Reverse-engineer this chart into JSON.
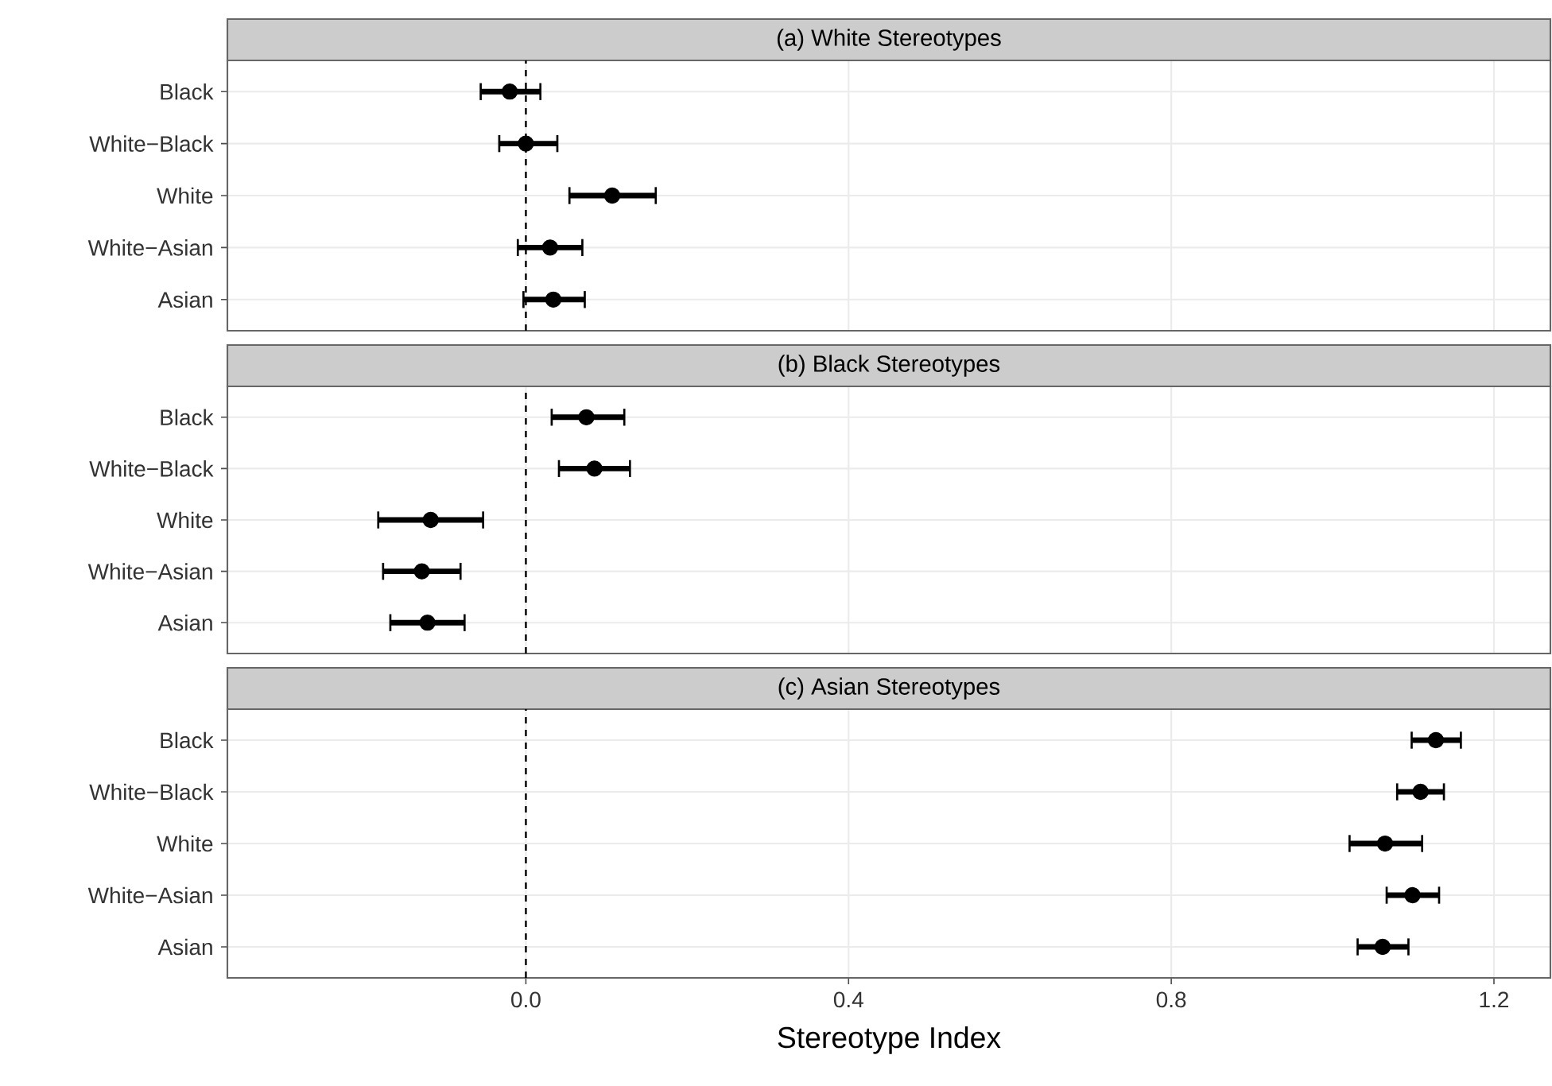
{
  "chart_data": [
    {
      "type": "scatter",
      "title": "(a) White Stereotypes",
      "orientation": "horizontal",
      "categories": [
        "Black",
        "White−Black",
        "White",
        "White−Asian",
        "Asian"
      ],
      "values": [
        -0.02,
        0.0,
        0.107,
        0.03,
        0.034
      ],
      "errors": [
        [
          -0.056,
          0.018
        ],
        [
          -0.033,
          0.039
        ],
        [
          0.054,
          0.161
        ],
        [
          -0.01,
          0.07
        ],
        [
          -0.003,
          0.073
        ]
      ],
      "color": "#000000",
      "xlim": [
        -0.37,
        1.27
      ],
      "xticks": [
        0,
        0.4,
        0.8,
        1.2
      ],
      "grid": true,
      "tick_labels": "y",
      "ref_lines": [
        {
          "axis": "x",
          "value": 0,
          "line_style": "dashed"
        }
      ]
    },
    {
      "type": "scatter",
      "title": "(b) Black Stereotypes",
      "orientation": "horizontal",
      "categories": [
        "Black",
        "White−Black",
        "White",
        "White−Asian",
        "Asian"
      ],
      "values": [
        0.075,
        0.085,
        -0.118,
        -0.129,
        -0.122
      ],
      "errors": [
        [
          0.032,
          0.122
        ],
        [
          0.041,
          0.129
        ],
        [
          -0.183,
          -0.053
        ],
        [
          -0.177,
          -0.081
        ],
        [
          -0.168,
          -0.076
        ]
      ],
      "color": "#000000",
      "xlim": [
        -0.37,
        1.27
      ],
      "xticks": [
        0,
        0.4,
        0.8,
        1.2
      ],
      "grid": true,
      "tick_labels": "y",
      "ref_lines": [
        {
          "axis": "x",
          "value": 0,
          "line_style": "dashed"
        }
      ]
    },
    {
      "type": "scatter",
      "title": "(c) Asian Stereotypes",
      "orientation": "horizontal",
      "xlabel": "Stereotype Index",
      "categories": [
        "Black",
        "White−Black",
        "White",
        "White−Asian",
        "Asian"
      ],
      "values": [
        1.128,
        1.109,
        1.065,
        1.099,
        1.062
      ],
      "errors": [
        [
          1.098,
          1.159
        ],
        [
          1.08,
          1.138
        ],
        [
          1.021,
          1.111
        ],
        [
          1.067,
          1.132
        ],
        [
          1.031,
          1.094
        ]
      ],
      "color": "#000000",
      "xlim": [
        -0.37,
        1.27
      ],
      "xticks": [
        {
          "value": 0,
          "label": "0.0"
        },
        {
          "value": 0.4,
          "label": "0.4"
        },
        {
          "value": 0.8,
          "label": "0.8"
        },
        {
          "value": 1.2,
          "label": "1.2"
        }
      ],
      "grid": true,
      "ref_lines": [
        {
          "axis": "x",
          "value": 0,
          "line_style": "dashed"
        }
      ]
    }
  ]
}
